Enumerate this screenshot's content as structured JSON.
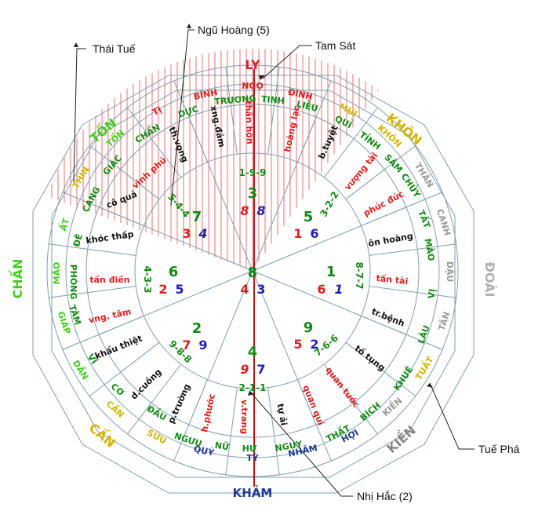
{
  "colors": {
    "red": "#dd1f1f",
    "green": "#138a13",
    "blue": "#1f1fb0",
    "black": "#111111",
    "lime": "#44cc22",
    "gold": "#d4b400",
    "gray": "#9a9a9a",
    "darkgray": "#666666",
    "navy": "#1f3a8f",
    "hatch": "#e05a5a",
    "line": "#7f9fb0"
  },
  "callouts": {
    "ngu_hoang": "Ngũ Hoàng (5)",
    "thai_tue": "Thái Tuế",
    "tam_sat": "Tam Sát",
    "tue_pha": "Tuế Phá",
    "nhi_hac": "Nhị Hắc (2)"
  },
  "directions": {
    "ly": "LY",
    "khon_big": "KHÔN",
    "doai": "ĐOÀI",
    "kien_big": "KIỀN",
    "kham": "KHẢM",
    "can_big": "CẤN",
    "chan": "CHẤN",
    "ton_big": "TỐN"
  },
  "outer_ring": {
    "binh": "BÍNH",
    "ngo": "NGỌ",
    "dinh": "ĐINH",
    "mui": "MÙI",
    "khon": "KHÔN",
    "than": "THÂN",
    "canh": "CANH",
    "dau": "DẬU",
    "tan": "TÂN",
    "tuat": "TUẤT",
    "kien": "KIỀN",
    "hoi": "HỢI",
    "nham": "NHÂM",
    "ty": "TÝ",
    "quy": "QUÝ",
    "suu": "SỬU",
    "can": "CẤN",
    "dan": "DẦN",
    "giap": "GIÁP",
    "mao": "MÃO",
    "at": "ẤT",
    "thin": "THÌN",
    "ton": "TỐN",
    "ti": "TỊ"
  },
  "mansions": {
    "truong": "TRƯƠNG",
    "tinh": "TINH",
    "lieu": "LIỄU",
    "quy": "QUỈ",
    "tinh2": "TỈNH",
    "sam": "SÂM",
    "chuy": "CHỦY",
    "tat": "TẤT",
    "mao": "MÃO",
    "vi": "VỊ",
    "lau": "LÂU",
    "khue": "KHUÊ",
    "bich": "BÍCH",
    "that": "THẤT",
    "nguy": "NGUY",
    "hu": "HƯ",
    "nu": "NỮ",
    "nguu": "NGƯU",
    "dau": "ĐẦU",
    "co": "CƠ",
    "vi2": "VĨ",
    "tam": "TÂM",
    "phong": "PHÒNG",
    "de": "ĐÊ",
    "cang": "CANG",
    "giac": "GIÁC",
    "chan": "CHẨN",
    "duc": "DỰC"
  },
  "stars_ring": {
    "th_vong": "th.vọng",
    "xng_dam": "xng.đảm",
    "than_hon": "thần hồn",
    "hoang_lac": "hoàng lạc",
    "b_tuyet": "b.tuyệt",
    "vuong_tai": "vượng tài",
    "phuc_duc": "phúc đức",
    "on_hoang": "ôn hoàng",
    "tan_tai": "tấn tài",
    "tr_benh": "tr.bệnh",
    "to_tung": "tố tụng",
    "quan_tuoc": "quan tước",
    "quan_qui": "quan quí",
    "ty_ai": "tự ải",
    "v_trang": "v.trang",
    "h_phuoc": "h.phước",
    "p_truong": "p.trường",
    "d_cuong": "d.cuồng",
    "khau_thiet": "khẩu thiệt",
    "vng_tam": "vng. tâm",
    "tan_dien": "tấn điền",
    "khoc_thap": "khóc thấp",
    "co_qua": "cô quả",
    "vinh_phu": "vinh phú"
  },
  "palaces": {
    "south": {
      "big": "3",
      "trip": "1-9-9",
      "mount": "8",
      "face": "8"
    },
    "southwest": {
      "big": "5",
      "trip": "3-2-2",
      "mount": "1",
      "face": "6"
    },
    "west": {
      "big": "1",
      "trip": "8-7-7",
      "mount": "6",
      "face": "1"
    },
    "northwest": {
      "big": "9",
      "trip": "7-6-6",
      "mount": "5",
      "face": "2"
    },
    "north": {
      "big": "4",
      "trip": "2-1-1",
      "mount": "9",
      "face": "7"
    },
    "northeast": {
      "big": "2",
      "trip": "9-8-8",
      "mount": "7",
      "face": "9"
    },
    "east": {
      "big": "6",
      "trip": "4-3-3",
      "mount": "2",
      "face": "5"
    },
    "southeast": {
      "big": "7",
      "trip": "5-4-4",
      "mount": "3",
      "face": "4"
    },
    "center": {
      "big": "8",
      "mount": "4",
      "face": "3"
    }
  }
}
